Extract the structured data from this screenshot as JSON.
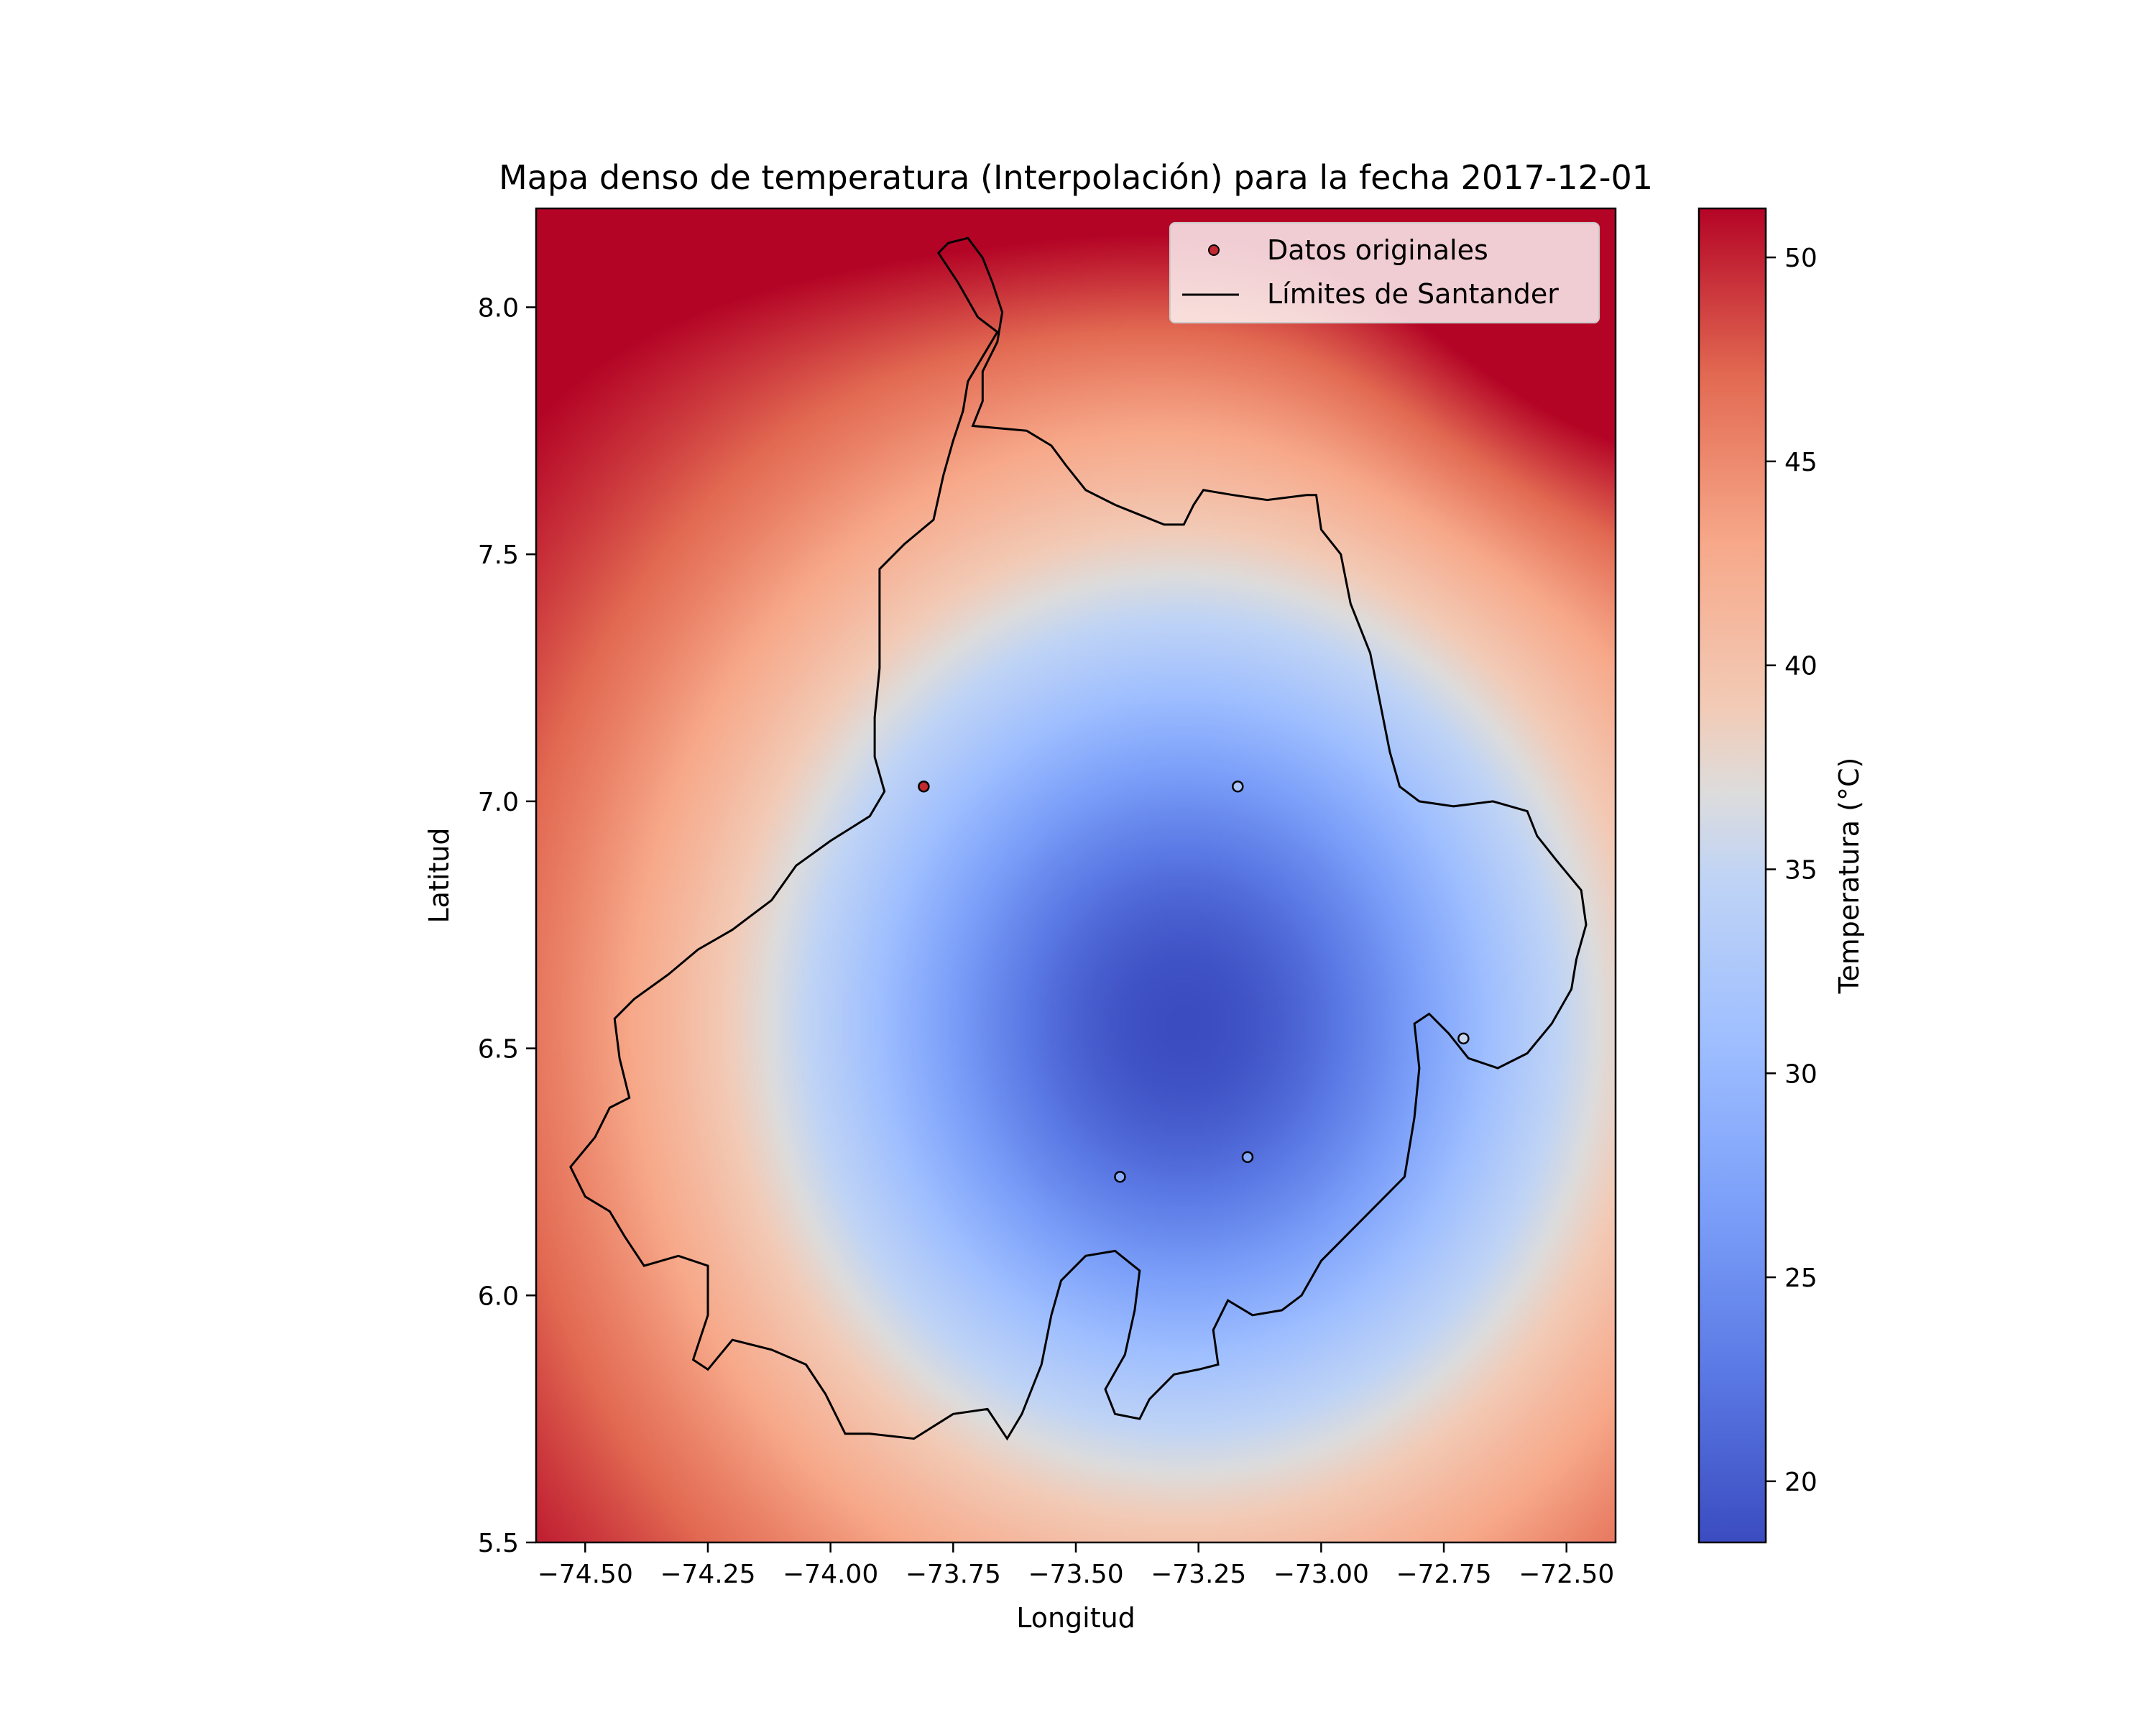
{
  "chart_data": {
    "type": "heatmap",
    "title": "Mapa denso de temperatura (Interpolación) para la fecha 2017-12-01",
    "xlabel": "Longitud",
    "ylabel": "Latitud",
    "xlim": [
      -74.6,
      -72.4
    ],
    "ylim": [
      5.5,
      8.2
    ],
    "x_ticks": [
      -74.5,
      -74.25,
      -74.0,
      -73.75,
      -73.5,
      -73.25,
      -73.0,
      -72.75,
      -72.5
    ],
    "x_tick_labels": [
      "−74.50",
      "−74.25",
      "−74.00",
      "−73.75",
      "−73.50",
      "−73.25",
      "−73.00",
      "−72.75",
      "−72.50"
    ],
    "y_ticks": [
      5.5,
      6.0,
      6.5,
      7.0,
      7.5,
      8.0
    ],
    "y_tick_labels": [
      "5.5",
      "6.0",
      "6.5",
      "7.0",
      "7.5",
      "8.0"
    ],
    "colorbar": {
      "label": "Temperatura (°C)",
      "range": [
        18.5,
        51.2
      ],
      "ticks": [
        20,
        25,
        30,
        35,
        40,
        45,
        50
      ],
      "tick_labels": [
        "20",
        "25",
        "30",
        "35",
        "40",
        "45",
        "50"
      ],
      "colormap": "coolwarm"
    },
    "field": {
      "minimum_center": {
        "lon": -73.28,
        "lat": 6.55,
        "value": 18.5
      },
      "maximum_corner": {
        "lon": -72.42,
        "lat": 8.05,
        "value": 51.2
      }
    },
    "points": {
      "name": "Datos originales",
      "data": [
        {
          "lon": -73.81,
          "lat": 7.03
        },
        {
          "lon": -73.17,
          "lat": 7.03
        },
        {
          "lon": -72.71,
          "lat": 6.52
        },
        {
          "lon": -73.41,
          "lat": 6.24
        },
        {
          "lon": -73.15,
          "lat": 6.28
        }
      ]
    },
    "boundary": {
      "name": "Límites de Santander",
      "lonlat": [
        [
          -73.72,
          8.14
        ],
        [
          -73.69,
          8.1
        ],
        [
          -73.67,
          8.05
        ],
        [
          -73.65,
          7.99
        ],
        [
          -73.66,
          7.93
        ],
        [
          -73.69,
          7.87
        ],
        [
          -73.69,
          7.81
        ],
        [
          -73.71,
          7.76
        ],
        [
          -73.6,
          7.75
        ],
        [
          -73.55,
          7.72
        ],
        [
          -73.52,
          7.68
        ],
        [
          -73.48,
          7.63
        ],
        [
          -73.42,
          7.6
        ],
        [
          -73.37,
          7.58
        ],
        [
          -73.32,
          7.56
        ],
        [
          -73.28,
          7.56
        ],
        [
          -73.26,
          7.6
        ],
        [
          -73.24,
          7.63
        ],
        [
          -73.18,
          7.62
        ],
        [
          -73.11,
          7.61
        ],
        [
          -73.03,
          7.62
        ],
        [
          -73.01,
          7.62
        ],
        [
          -73.0,
          7.55
        ],
        [
          -72.96,
          7.5
        ],
        [
          -72.94,
          7.4
        ],
        [
          -72.9,
          7.3
        ],
        [
          -72.88,
          7.2
        ],
        [
          -72.86,
          7.1
        ],
        [
          -72.84,
          7.03
        ],
        [
          -72.8,
          7.0
        ],
        [
          -72.73,
          6.99
        ],
        [
          -72.65,
          7.0
        ],
        [
          -72.58,
          6.98
        ],
        [
          -72.56,
          6.93
        ],
        [
          -72.52,
          6.88
        ],
        [
          -72.47,
          6.82
        ],
        [
          -72.46,
          6.75
        ],
        [
          -72.48,
          6.68
        ],
        [
          -72.49,
          6.62
        ],
        [
          -72.53,
          6.55
        ],
        [
          -72.58,
          6.49
        ],
        [
          -72.64,
          6.46
        ],
        [
          -72.7,
          6.48
        ],
        [
          -72.74,
          6.53
        ],
        [
          -72.78,
          6.57
        ],
        [
          -72.81,
          6.55
        ],
        [
          -72.8,
          6.46
        ],
        [
          -72.81,
          6.36
        ],
        [
          -72.83,
          6.24
        ],
        [
          -72.88,
          6.19
        ],
        [
          -72.95,
          6.12
        ],
        [
          -73.0,
          6.07
        ],
        [
          -73.04,
          6.0
        ],
        [
          -73.08,
          5.97
        ],
        [
          -73.14,
          5.96
        ],
        [
          -73.19,
          5.99
        ],
        [
          -73.22,
          5.93
        ],
        [
          -73.21,
          5.86
        ],
        [
          -73.25,
          5.85
        ],
        [
          -73.3,
          5.84
        ],
        [
          -73.35,
          5.79
        ],
        [
          -73.37,
          5.75
        ],
        [
          -73.42,
          5.76
        ],
        [
          -73.44,
          5.81
        ],
        [
          -73.4,
          5.88
        ],
        [
          -73.38,
          5.97
        ],
        [
          -73.37,
          6.05
        ],
        [
          -73.42,
          6.09
        ],
        [
          -73.48,
          6.08
        ],
        [
          -73.53,
          6.03
        ],
        [
          -73.55,
          5.96
        ],
        [
          -73.57,
          5.86
        ],
        [
          -73.61,
          5.76
        ],
        [
          -73.64,
          5.71
        ],
        [
          -73.68,
          5.77
        ],
        [
          -73.75,
          5.76
        ],
        [
          -73.83,
          5.71
        ],
        [
          -73.92,
          5.72
        ],
        [
          -73.97,
          5.72
        ],
        [
          -74.01,
          5.8
        ],
        [
          -74.05,
          5.86
        ],
        [
          -74.12,
          5.89
        ],
        [
          -74.2,
          5.91
        ],
        [
          -74.25,
          5.85
        ],
        [
          -74.28,
          5.87
        ],
        [
          -74.25,
          5.96
        ],
        [
          -74.25,
          6.06
        ],
        [
          -74.31,
          6.08
        ],
        [
          -74.38,
          6.06
        ],
        [
          -74.42,
          6.12
        ],
        [
          -74.45,
          6.17
        ],
        [
          -74.5,
          6.2
        ],
        [
          -74.53,
          6.26
        ],
        [
          -74.48,
          6.32
        ],
        [
          -74.45,
          6.38
        ],
        [
          -74.41,
          6.4
        ],
        [
          -74.43,
          6.48
        ],
        [
          -74.44,
          6.56
        ],
        [
          -74.4,
          6.6
        ],
        [
          -74.33,
          6.65
        ],
        [
          -74.27,
          6.7
        ],
        [
          -74.2,
          6.74
        ],
        [
          -74.12,
          6.8
        ],
        [
          -74.07,
          6.87
        ],
        [
          -74.0,
          6.92
        ],
        [
          -73.92,
          6.97
        ],
        [
          -73.89,
          7.02
        ],
        [
          -73.91,
          7.09
        ],
        [
          -73.91,
          7.17
        ],
        [
          -73.9,
          7.27
        ],
        [
          -73.9,
          7.38
        ],
        [
          -73.9,
          7.47
        ],
        [
          -73.85,
          7.52
        ],
        [
          -73.79,
          7.57
        ],
        [
          -73.77,
          7.66
        ],
        [
          -73.75,
          7.73
        ],
        [
          -73.73,
          7.79
        ],
        [
          -73.72,
          7.85
        ],
        [
          -73.69,
          7.9
        ],
        [
          -73.66,
          7.95
        ],
        [
          -73.7,
          7.98
        ],
        [
          -73.74,
          8.05
        ],
        [
          -73.78,
          8.11
        ],
        [
          -73.76,
          8.13
        ],
        [
          -73.72,
          8.14
        ]
      ]
    },
    "legend": {
      "position": "top-right",
      "entries": [
        "Datos originales",
        "Límites de Santander"
      ]
    }
  }
}
